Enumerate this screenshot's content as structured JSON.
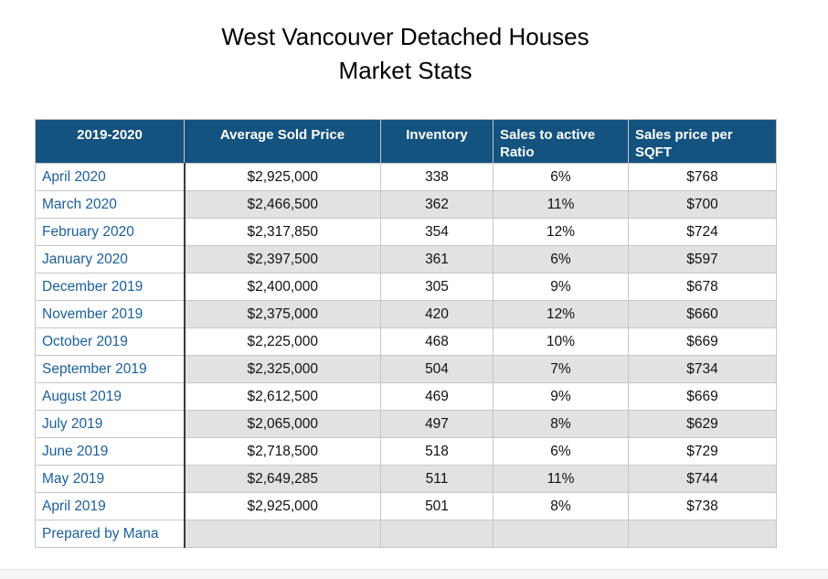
{
  "title": {
    "line1": "West Vancouver Detached Houses",
    "line2": "Market Stats"
  },
  "chart_data": {
    "type": "table",
    "title": "West Vancouver Detached Houses Market Stats",
    "columns": [
      "2019-2020",
      "Average Sold Price",
      "Inventory",
      "Sales to active Ratio",
      "Sales price per SQFT"
    ],
    "rows": [
      [
        "April 2020",
        "$2,925,000",
        "338",
        "6%",
        "$768"
      ],
      [
        "March 2020",
        "$2,466,500",
        "362",
        "11%",
        "$700"
      ],
      [
        "February 2020",
        "$2,317,850",
        "354",
        "12%",
        "$724"
      ],
      [
        "January 2020",
        "$2,397,500",
        "361",
        "6%",
        "$597"
      ],
      [
        "December 2019",
        "$2,400,000",
        "305",
        "9%",
        "$678"
      ],
      [
        "November 2019",
        "$2,375,000",
        "420",
        "12%",
        "$660"
      ],
      [
        "October 2019",
        "$2,225,000",
        "468",
        "10%",
        "$669"
      ],
      [
        "September 2019",
        "$2,325,000",
        "504",
        "7%",
        "$734"
      ],
      [
        "August 2019",
        "$2,612,500",
        "469",
        "9%",
        "$669"
      ],
      [
        "July 2019",
        "$2,065,000",
        "497",
        "8%",
        "$629"
      ],
      [
        "June 2019",
        "$2,718,500",
        "518",
        "6%",
        "$729"
      ],
      [
        "May 2019",
        "$2,649,285",
        "511",
        "11%",
        "$744"
      ],
      [
        "April 2019",
        "$2,925,000",
        "501",
        "8%",
        "$738"
      ]
    ],
    "footer": "Prepared by Mana",
    "layout": {
      "striped": "even data rows shaded in value columns only",
      "legend_position": "none",
      "grid": "on"
    }
  },
  "colors": {
    "header_bg": "#14527F",
    "header_text": "#FFFFFF",
    "month_text": "#1A5F9E",
    "value_text": "#111111",
    "stripe_bg": "#E2E2E2",
    "grid_line": "#C6C6C6",
    "column_divider": "#3B3B3B"
  }
}
